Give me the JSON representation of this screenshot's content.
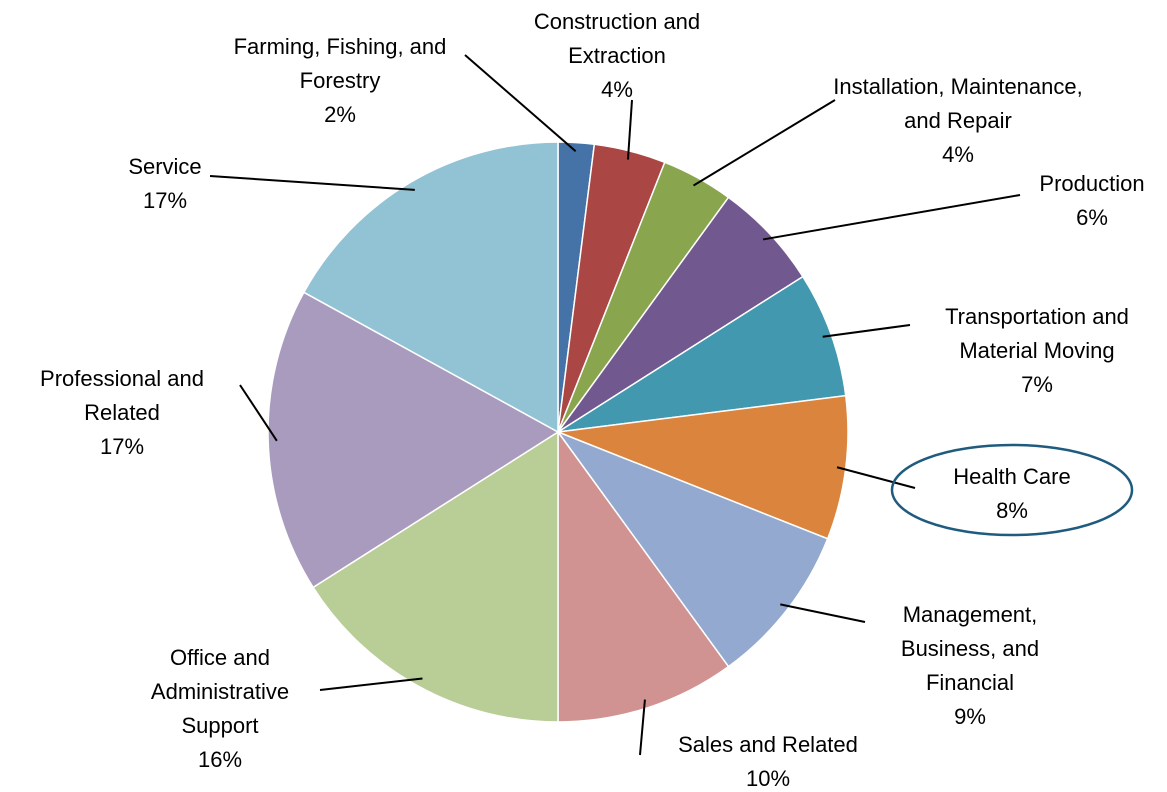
{
  "chart_data": {
    "type": "pie",
    "categories": [
      "Farming, Fishing, and Forestry",
      "Construction and Extraction",
      "Installation, Maintenance, and Repair",
      "Production",
      "Transportation and Material Moving",
      "Health Care",
      "Management, Business, and Financial",
      "Sales and Related",
      "Office and Administrative Support",
      "Professional and Related",
      "Service"
    ],
    "values": [
      2,
      4,
      4,
      6,
      7,
      8,
      9,
      10,
      16,
      17,
      17
    ],
    "value_labels": [
      "2%",
      "4%",
      "4%",
      "6%",
      "7%",
      "8%",
      "9%",
      "10%",
      "16%",
      "17%",
      "17%"
    ],
    "colors": [
      "#4572a7",
      "#aa4643",
      "#89a54e",
      "#71588f",
      "#4198af",
      "#db843d",
      "#93a9cf",
      "#d19392",
      "#b9cd96",
      "#a99bbd",
      "#92c3d4"
    ]
  }
}
